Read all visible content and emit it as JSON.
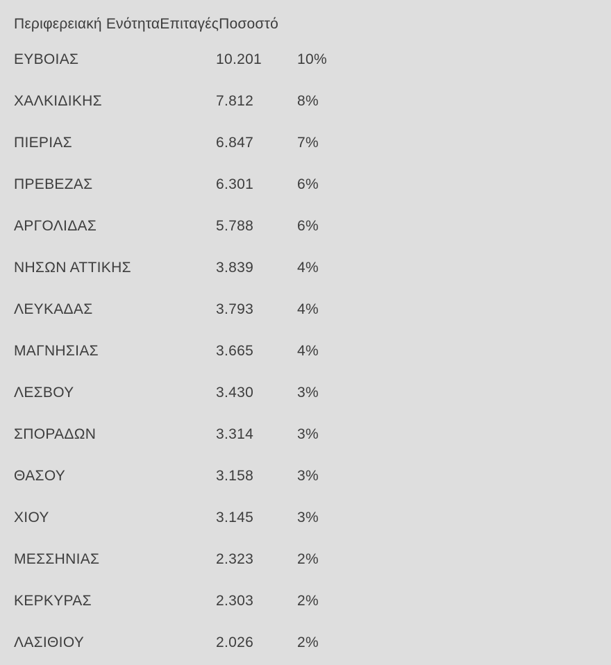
{
  "page": {
    "background_color": "#dedede",
    "text_color": "#3d3d3d"
  },
  "table": {
    "header_labels": [
      "Περιφερειακή Ενότητα",
      "Επιταγές",
      "Ποσοστό"
    ],
    "rows": [
      {
        "region": "ΕΥΒΟΙΑΣ",
        "checks": "10.201",
        "percent": "10%"
      },
      {
        "region": "ΧΑΛΚΙΔΙΚΗΣ",
        "checks": "7.812",
        "percent": "8%"
      },
      {
        "region": "ΠΙΕΡΙΑΣ",
        "checks": "6.847",
        "percent": "7%"
      },
      {
        "region": "ΠΡΕΒΕΖΑΣ",
        "checks": "6.301",
        "percent": "6%"
      },
      {
        "region": "ΑΡΓΟΛΙΔΑΣ",
        "checks": "5.788",
        "percent": "6%"
      },
      {
        "region": "ΝΗΣΩΝ ΑΤΤΙΚΗΣ",
        "checks": "3.839",
        "percent": "4%"
      },
      {
        "region": "ΛΕΥΚΑΔΑΣ",
        "checks": "3.793",
        "percent": "4%"
      },
      {
        "region": "ΜΑΓΝΗΣΙΑΣ",
        "checks": "3.665",
        "percent": "4%"
      },
      {
        "region": "ΛΕΣΒΟΥ",
        "checks": "3.430",
        "percent": "3%"
      },
      {
        "region": "ΣΠΟΡΑΔΩΝ",
        "checks": "3.314",
        "percent": "3%"
      },
      {
        "region": "ΘΑΣΟΥ",
        "checks": "3.158",
        "percent": "3%"
      },
      {
        "region": "ΧΙΟΥ",
        "checks": "3.145",
        "percent": "3%"
      },
      {
        "region": "ΜΕΣΣΗΝΙΑΣ",
        "checks": "2.323",
        "percent": "2%"
      },
      {
        "region": "ΚΕΡΚΥΡΑΣ",
        "checks": "2.303",
        "percent": "2%"
      },
      {
        "region": "ΛΑΣΙΘΙΟΥ",
        "checks": "2.026",
        "percent": "2%"
      }
    ]
  },
  "chart_data": {
    "type": "table",
    "columns": [
      "Περιφερειακή Ενότητα",
      "Επιταγές",
      "Ποσοστό"
    ],
    "rows": [
      [
        "ΕΥΒΟΙΑΣ",
        10201,
        "10%"
      ],
      [
        "ΧΑΛΚΙΔΙΚΗΣ",
        7812,
        "8%"
      ],
      [
        "ΠΙΕΡΙΑΣ",
        6847,
        "7%"
      ],
      [
        "ΠΡΕΒΕΖΑΣ",
        6301,
        "6%"
      ],
      [
        "ΑΡΓΟΛΙΔΑΣ",
        5788,
        "6%"
      ],
      [
        "ΝΗΣΩΝ ΑΤΤΙΚΗΣ",
        3839,
        "4%"
      ],
      [
        "ΛΕΥΚΑΔΑΣ",
        3793,
        "4%"
      ],
      [
        "ΜΑΓΝΗΣΙΑΣ",
        3665,
        "4%"
      ],
      [
        "ΛΕΣΒΟΥ",
        3430,
        "3%"
      ],
      [
        "ΣΠΟΡΑΔΩΝ",
        3314,
        "3%"
      ],
      [
        "ΘΑΣΟΥ",
        3158,
        "3%"
      ],
      [
        "ΧΙΟΥ",
        3145,
        "3%"
      ],
      [
        "ΜΕΣΣΗΝΙΑΣ",
        2323,
        "2%"
      ],
      [
        "ΚΕΡΚΥΡΑΣ",
        2303,
        "2%"
      ],
      [
        "ΛΑΣΙΘΙΟΥ",
        2026,
        "2%"
      ]
    ],
    "title": "",
    "notes": "Header cells render concatenated without spacing between column labels"
  }
}
